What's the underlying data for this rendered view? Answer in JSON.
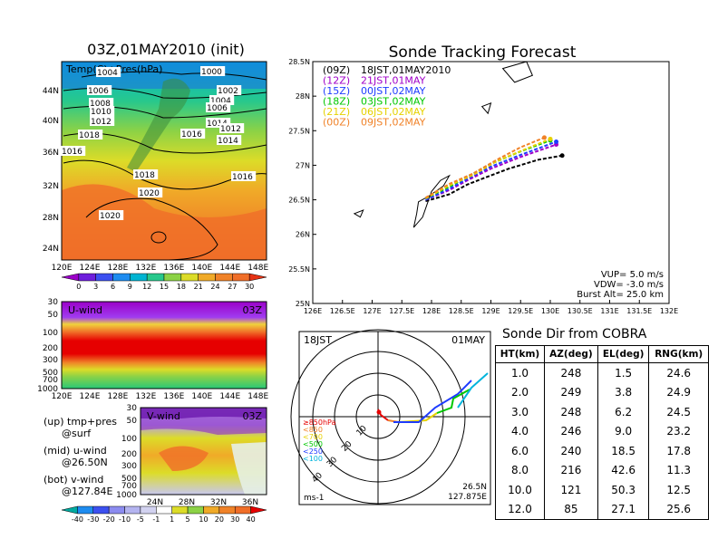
{
  "left_panels": {
    "title": "03Z,01MAY2010 (init)",
    "top": {
      "label": "Temp(C)+Pres(hPa)",
      "lat_ticks": [
        "44N",
        "40N",
        "36N",
        "32N",
        "28N",
        "24N"
      ],
      "lon_ticks": [
        "120E",
        "124E",
        "128E",
        "132E",
        "136E",
        "140E",
        "144E",
        "148E"
      ],
      "isobar_labels": [
        "1004",
        "1006",
        "1008",
        "1010",
        "1012",
        "1000",
        "1002",
        "1004",
        "1006",
        "1014",
        "1012",
        "1016",
        "1014",
        "1018",
        "1016",
        "1018",
        "1020",
        "1016",
        "1020"
      ],
      "colorbar_ticks": [
        "0",
        "3",
        "6",
        "9",
        "12",
        "15",
        "18",
        "21",
        "24",
        "27",
        "30"
      ]
    },
    "mid": {
      "label": "U-wind",
      "time": "03Z",
      "p_ticks": [
        "30",
        "50",
        "100",
        "200",
        "300",
        "500",
        "700",
        "1000"
      ],
      "lon_ticks": [
        "120E",
        "124E",
        "128E",
        "132E",
        "136E",
        "140E",
        "144E",
        "148E"
      ]
    },
    "bottom": {
      "label": "V-wind",
      "time": "03Z",
      "p_ticks": [
        "30",
        "50",
        "100",
        "200",
        "300",
        "500",
        "700",
        "1000"
      ],
      "lat_ticks": [
        "24N",
        "28N",
        "32N",
        "36N"
      ],
      "colorbar_ticks": [
        "-40",
        "-30",
        "-20",
        "-10",
        "-5",
        "-1",
        "1",
        "5",
        "10",
        "20",
        "30",
        "40"
      ]
    },
    "legend": {
      "up": "(up) tmp+pres",
      "up2": "@surf",
      "mid": "(mid) u-wind",
      "mid2": "@26.50N",
      "bot": "(bot) v-wind",
      "bot2": "@127.84E"
    }
  },
  "chart_data": [
    {
      "type": "line",
      "title": "Sonde Tracking Forecast",
      "xlim": [
        126,
        132
      ],
      "ylim": [
        25,
        28.5
      ],
      "x_ticks": [
        "126E",
        "126.5E",
        "127E",
        "127.5E",
        "128E",
        "128.5E",
        "129E",
        "129.5E",
        "130E",
        "130.5E",
        "131E",
        "131.5E",
        "132E"
      ],
      "y_ticks": [
        "25N",
        "25.5N",
        "26N",
        "26.5N",
        "27N",
        "27.5N",
        "28N",
        "28.5N"
      ],
      "legend": [
        {
          "tag": "(09Z)",
          "time": "18JST,01MAY2010",
          "color": "#000000"
        },
        {
          "tag": "(12Z)",
          "time": "21JST,01MAY",
          "color": "#a000c8"
        },
        {
          "tag": "(15Z)",
          "time": "00JST,02MAY",
          "color": "#1e3cff"
        },
        {
          "tag": "(18Z)",
          "time": "03JST,02MAY",
          "color": "#00c800"
        },
        {
          "tag": "(21Z)",
          "time": "06JST,02MAY",
          "color": "#e6d200"
        },
        {
          "tag": "(00Z)",
          "time": "09JST,02MAY",
          "color": "#f08228"
        }
      ],
      "series": [
        {
          "color": "#000000",
          "lon": [
            127.9,
            128.3,
            128.6,
            128.9,
            129.3,
            129.8,
            130.2
          ],
          "lat": [
            26.48,
            26.58,
            26.72,
            26.82,
            26.95,
            27.08,
            27.14
          ]
        },
        {
          "color": "#a000c8",
          "lon": [
            127.9,
            128.3,
            128.6,
            129.0,
            129.5,
            130.1
          ],
          "lat": [
            26.5,
            26.64,
            26.78,
            26.95,
            27.12,
            27.3
          ]
        },
        {
          "color": "#1e3cff",
          "lon": [
            127.9,
            128.3,
            128.6,
            129.0,
            129.5,
            130.1
          ],
          "lat": [
            26.5,
            26.66,
            26.8,
            26.98,
            27.15,
            27.34
          ]
        },
        {
          "color": "#00c800",
          "lon": [
            127.9,
            128.3,
            128.6,
            129.0,
            129.5,
            130.0
          ],
          "lat": [
            26.52,
            26.69,
            26.83,
            27.02,
            27.2,
            27.36
          ]
        },
        {
          "color": "#e6d200",
          "lon": [
            127.9,
            128.3,
            128.7,
            129.1,
            129.6,
            130.0
          ],
          "lat": [
            26.52,
            26.71,
            26.86,
            27.06,
            27.24,
            27.38
          ]
        },
        {
          "color": "#f08228",
          "lon": [
            127.9,
            128.3,
            128.7,
            129.1,
            129.5,
            129.9
          ],
          "lat": [
            26.53,
            26.73,
            26.88,
            27.08,
            27.26,
            27.4
          ]
        }
      ],
      "params": [
        "VUP= 5.0 m/s",
        "VDW= -3.0 m/s",
        "Burst Alt= 25.0 km"
      ]
    },
    {
      "type": "scatter",
      "title": "Sonde Dir from COBRA",
      "columns": [
        "HT(km)",
        "AZ(deg)",
        "EL(deg)",
        "RNG(km)"
      ],
      "rows": [
        [
          "1.0",
          "248",
          "1.5",
          "24.6"
        ],
        [
          "2.0",
          "249",
          "3.8",
          "24.9"
        ],
        [
          "3.0",
          "248",
          "6.2",
          "24.5"
        ],
        [
          "4.0",
          "246",
          "9.0",
          "23.2"
        ],
        [
          "6.0",
          "240",
          "18.5",
          "17.8"
        ],
        [
          "8.0",
          "216",
          "42.6",
          "11.3"
        ],
        [
          "10.0",
          "121",
          "50.3",
          "12.5"
        ],
        [
          "12.0",
          "85",
          "27.1",
          "25.6"
        ]
      ]
    }
  ],
  "polar": {
    "time_left": "18JST",
    "date_right": "01MAY",
    "ring_labels": [
      "10",
      "20",
      "30",
      "40"
    ],
    "unit": "ms-1",
    "lat": "26.5N",
    "lon": "127.875E",
    "levels": [
      {
        "label": "≥850hPa",
        "color": "#e60000"
      },
      {
        "label": "<850",
        "color": "#f08228"
      },
      {
        "label": "<700",
        "color": "#e6d200"
      },
      {
        "label": "<500",
        "color": "#00c800"
      },
      {
        "label": "<250",
        "color": "#1e3cff"
      },
      {
        "label": "<100",
        "color": "#00b4dc"
      }
    ]
  }
}
